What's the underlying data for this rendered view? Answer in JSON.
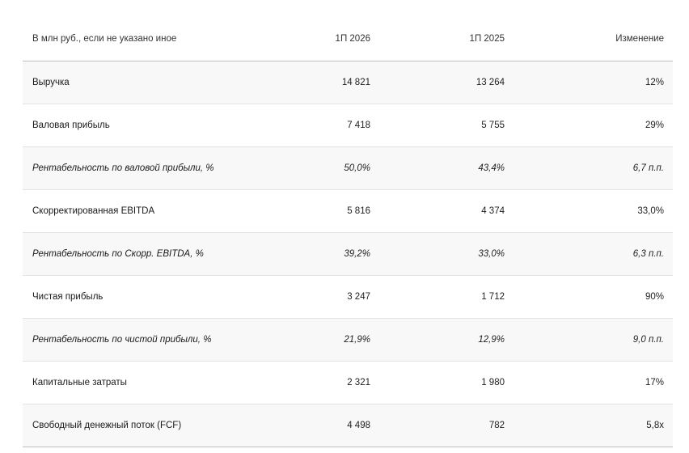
{
  "table": {
    "headers": {
      "label": "В млн руб., если не указано иное",
      "col1": "1П 2026",
      "col2": "1П 2025",
      "change": "Изменение"
    },
    "rows": [
      {
        "label": "Выручка",
        "v1": "14 821",
        "v2": "13 264",
        "change": "12%",
        "italic": false,
        "shaded": true
      },
      {
        "label": "Валовая прибыль",
        "v1": "7 418",
        "v2": "5 755",
        "change": "29%",
        "italic": false,
        "shaded": false
      },
      {
        "label": "Рентабельность по валовой прибыли, %",
        "v1": "50,0%",
        "v2": "43,4%",
        "change": "6,7 п.п.",
        "italic": true,
        "shaded": true
      },
      {
        "label": "Скорректированная EBITDA",
        "v1": "5 816",
        "v2": "4 374",
        "change": "33,0%",
        "italic": false,
        "shaded": false
      },
      {
        "label": "Рентабельность по Скорр. EBITDA, %",
        "v1": "39,2%",
        "v2": "33,0%",
        "change": "6,3 п.п.",
        "italic": true,
        "shaded": true
      },
      {
        "label": "Чистая прибыль",
        "v1": "3 247",
        "v2": "1 712",
        "change": "90%",
        "italic": false,
        "shaded": false
      },
      {
        "label": "Рентабельность по чистой прибыли, %",
        "v1": "21,9%",
        "v2": "12,9%",
        "change": "9,0 п.п.",
        "italic": true,
        "shaded": true
      },
      {
        "label": "Капитальные затраты",
        "v1": "2 321",
        "v2": "1 980",
        "change": "17%",
        "italic": false,
        "shaded": false
      },
      {
        "label": "Свободный денежный поток (FCF)",
        "v1": "4 498",
        "v2": "782",
        "change": "5,8x",
        "italic": false,
        "shaded": true
      }
    ]
  }
}
